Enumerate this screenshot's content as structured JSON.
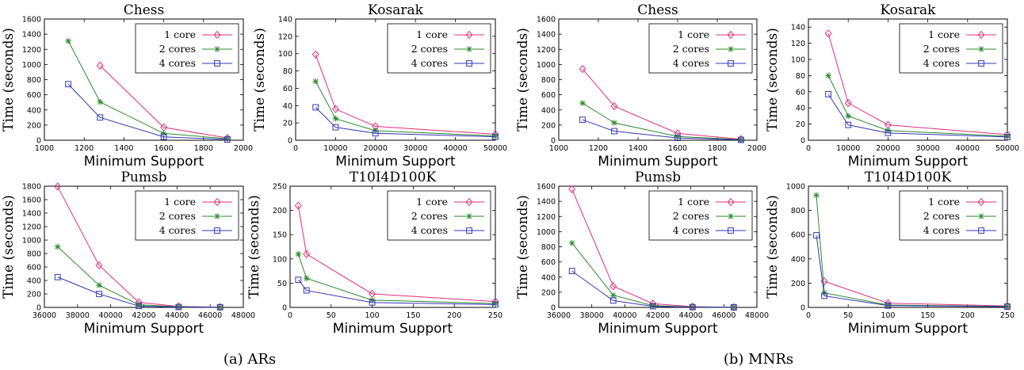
{
  "figure": {
    "captions": [
      "(a) ARs",
      "(b) MNRs"
    ]
  },
  "series_colors": {
    "1 core": "#e0307a",
    "2 cores": "#2e8b2e",
    "4 cores": "#3636b8"
  },
  "series_markers": {
    "1 core": "diamond",
    "2 cores": "asterisk",
    "4 cores": "square"
  },
  "chart_data": [
    {
      "type": "line",
      "group": "(a) ARs",
      "title": "Chess",
      "xlabel": "Minimum Support",
      "ylabel": "Time (seconds)",
      "xlim": [
        1000,
        2000
      ],
      "ylim": [
        0,
        1600
      ],
      "xticks": [
        1000,
        1200,
        1400,
        1600,
        1800,
        2000
      ],
      "yticks": [
        0,
        200,
        400,
        600,
        800,
        1000,
        1200,
        1400,
        1600
      ],
      "legend": "top-right",
      "series": [
        {
          "name": "1 core",
          "x": [
            1280,
            1600,
            1920
          ],
          "y": [
            985,
            170,
            30
          ]
        },
        {
          "name": "2 cores",
          "x": [
            1120,
            1280,
            1600,
            1920
          ],
          "y": [
            1310,
            505,
            90,
            20
          ]
        },
        {
          "name": "4 cores",
          "x": [
            1120,
            1280,
            1600,
            1920
          ],
          "y": [
            740,
            300,
            45,
            10
          ]
        }
      ]
    },
    {
      "type": "line",
      "group": "(a) ARs",
      "title": "Kosarak",
      "xlabel": "Minimum Support",
      "ylabel": "Time (seconds)",
      "xlim": [
        0,
        50000
      ],
      "ylim": [
        0,
        140
      ],
      "xticks": [
        0,
        10000,
        20000,
        30000,
        40000,
        50000
      ],
      "yticks": [
        0,
        20,
        40,
        60,
        80,
        100,
        120,
        140
      ],
      "legend": "top-right",
      "series": [
        {
          "name": "1 core",
          "x": [
            5000,
            10000,
            20000,
            50000
          ],
          "y": [
            99,
            36,
            16,
            7
          ]
        },
        {
          "name": "2 cores",
          "x": [
            5000,
            10000,
            20000,
            50000
          ],
          "y": [
            68,
            25,
            11,
            5
          ]
        },
        {
          "name": "4 cores",
          "x": [
            5000,
            10000,
            20000,
            50000
          ],
          "y": [
            38,
            15,
            8,
            4
          ]
        }
      ]
    },
    {
      "type": "line",
      "group": "(a) ARs",
      "title": "Pumsb",
      "xlabel": "Minimum Support",
      "ylabel": "Time (seconds)",
      "xlim": [
        36000,
        48000
      ],
      "ylim": [
        0,
        1800
      ],
      "xticks": [
        36000,
        38000,
        40000,
        42000,
        44000,
        46000,
        48000
      ],
      "yticks": [
        0,
        200,
        400,
        600,
        800,
        1000,
        1200,
        1400,
        1600,
        1800
      ],
      "legend": "top-right",
      "series": [
        {
          "name": "1 core",
          "x": [
            36800,
            39300,
            41700,
            44100,
            46600
          ],
          "y": [
            1795,
            625,
            75,
            15,
            5
          ]
        },
        {
          "name": "2 cores",
          "x": [
            36800,
            39300,
            41700,
            44100,
            46600
          ],
          "y": [
            900,
            330,
            40,
            10,
            3
          ]
        },
        {
          "name": "4 cores",
          "x": [
            36800,
            39300,
            41700,
            44100,
            46600
          ],
          "y": [
            450,
            200,
            20,
            5,
            2
          ]
        }
      ]
    },
    {
      "type": "line",
      "group": "(a) ARs",
      "title": "T10I4D100K",
      "xlabel": "Minimum Support",
      "ylabel": "Time (seconds)",
      "xlim": [
        0,
        250
      ],
      "ylim": [
        0,
        250
      ],
      "xticks": [
        0,
        50,
        100,
        150,
        200,
        250
      ],
      "yticks": [
        0,
        50,
        100,
        150,
        200,
        250
      ],
      "legend": "top-right",
      "series": [
        {
          "name": "1 core",
          "x": [
            10,
            20,
            100,
            250
          ],
          "y": [
            210,
            110,
            28,
            12
          ]
        },
        {
          "name": "2 cores",
          "x": [
            10,
            20,
            100,
            250
          ],
          "y": [
            110,
            60,
            15,
            8
          ]
        },
        {
          "name": "4 cores",
          "x": [
            10,
            20,
            100,
            250
          ],
          "y": [
            57,
            35,
            10,
            6
          ]
        }
      ]
    },
    {
      "type": "line",
      "group": "(b) MNRs",
      "title": "Chess",
      "xlabel": "Minimum Support",
      "ylabel": "Time (seconds)",
      "xlim": [
        1000,
        2000
      ],
      "ylim": [
        0,
        1600
      ],
      "xticks": [
        1000,
        1200,
        1400,
        1600,
        1800,
        2000
      ],
      "yticks": [
        0,
        200,
        400,
        600,
        800,
        1000,
        1200,
        1400,
        1600
      ],
      "legend": "top-right",
      "series": [
        {
          "name": "1 core",
          "x": [
            1120,
            1280,
            1600,
            1920
          ],
          "y": [
            940,
            450,
            90,
            15
          ]
        },
        {
          "name": "2 cores",
          "x": [
            1120,
            1280,
            1600,
            1920
          ],
          "y": [
            490,
            230,
            50,
            8
          ]
        },
        {
          "name": "4 cores",
          "x": [
            1120,
            1280,
            1600,
            1920
          ],
          "y": [
            270,
            120,
            30,
            5
          ]
        }
      ]
    },
    {
      "type": "line",
      "group": "(b) MNRs",
      "title": "Kosarak",
      "xlabel": "Minimum Support",
      "ylabel": "Time (seconds)",
      "xlim": [
        0,
        50000
      ],
      "ylim": [
        0,
        150
      ],
      "xticks": [
        0,
        10000,
        20000,
        30000,
        40000,
        50000
      ],
      "yticks": [
        0,
        20,
        40,
        60,
        80,
        100,
        120,
        140
      ],
      "legend": "top-right",
      "series": [
        {
          "name": "1 core",
          "x": [
            5000,
            10000,
            20000,
            50000
          ],
          "y": [
            132,
            46,
            19,
            7
          ]
        },
        {
          "name": "2 cores",
          "x": [
            5000,
            10000,
            20000,
            50000
          ],
          "y": [
            80,
            30,
            12,
            5
          ]
        },
        {
          "name": "4 cores",
          "x": [
            5000,
            10000,
            20000,
            50000
          ],
          "y": [
            57,
            19,
            9,
            4
          ]
        }
      ]
    },
    {
      "type": "line",
      "group": "(b) MNRs",
      "title": "Pumsb",
      "xlabel": "Minimum Support",
      "ylabel": "Time (seconds)",
      "xlim": [
        36000,
        48000
      ],
      "ylim": [
        0,
        1600
      ],
      "xticks": [
        36000,
        38000,
        40000,
        42000,
        44000,
        46000,
        48000
      ],
      "yticks": [
        0,
        200,
        400,
        600,
        800,
        1000,
        1200,
        1400,
        1600
      ],
      "legend": "top-right",
      "series": [
        {
          "name": "1 core",
          "x": [
            36800,
            39300,
            41700,
            44100,
            46600
          ],
          "y": [
            1560,
            280,
            50,
            10,
            3
          ]
        },
        {
          "name": "2 cores",
          "x": [
            36800,
            39300,
            41700,
            44100,
            46600
          ],
          "y": [
            850,
            160,
            25,
            5,
            2
          ]
        },
        {
          "name": "4 cores",
          "x": [
            36800,
            39300,
            41700,
            44100,
            46600
          ],
          "y": [
            480,
            90,
            15,
            3,
            1
          ]
        }
      ]
    },
    {
      "type": "line",
      "group": "(b) MNRs",
      "title": "T10I4D100K",
      "xlabel": "Minimum Support",
      "ylabel": "Time (seconds)",
      "xlim": [
        0,
        250
      ],
      "ylim": [
        0,
        1000
      ],
      "xticks": [
        0,
        50,
        100,
        150,
        200,
        250
      ],
      "yticks": [
        0,
        200,
        400,
        600,
        800,
        1000
      ],
      "legend": "top-right",
      "series": [
        {
          "name": "1 core",
          "x": [
            20,
            100,
            250
          ],
          "y": [
            215,
            35,
            12
          ]
        },
        {
          "name": "2 cores",
          "x": [
            10,
            20,
            100,
            250
          ],
          "y": [
            925,
            120,
            20,
            8
          ]
        },
        {
          "name": "4 cores",
          "x": [
            10,
            20,
            100,
            250
          ],
          "y": [
            595,
            95,
            15,
            6
          ]
        }
      ]
    }
  ]
}
